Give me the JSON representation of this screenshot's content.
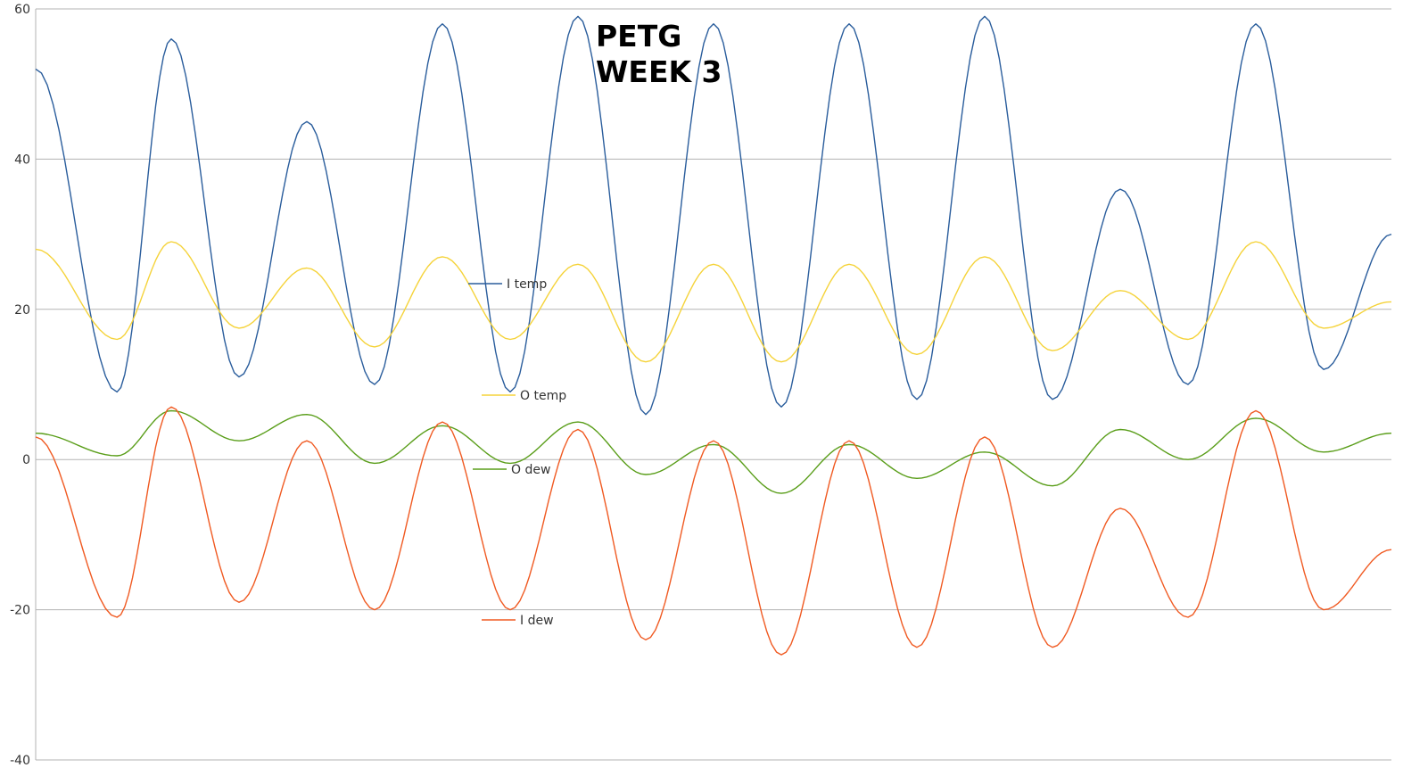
{
  "chart_data": {
    "type": "line",
    "title_lines": [
      "PETG",
      "WEEK 3"
    ],
    "xlabel": "",
    "ylabel": "",
    "ylim": [
      -40,
      60
    ],
    "yticks": [
      60,
      40,
      20,
      0,
      -20,
      -40
    ],
    "grid": true,
    "x": [
      0,
      0.6,
      1,
      1.5,
      2,
      2.5,
      3,
      3.5,
      4,
      4.5,
      5,
      5.5,
      6,
      6.5,
      7,
      7.5,
      8,
      8.5,
      9,
      9.5,
      10
    ],
    "series": [
      {
        "name": "I temp",
        "color": "#2a5d9c",
        "values": [
          52,
          9,
          56,
          11,
          45,
          10,
          58,
          9,
          59,
          6,
          58,
          7,
          58,
          8,
          59,
          8,
          36,
          10,
          58,
          12,
          30
        ]
      },
      {
        "name": "O temp",
        "color": "#f5d33a",
        "values": [
          28,
          16,
          29,
          17.5,
          25.5,
          15,
          27,
          16,
          26,
          13,
          26,
          13,
          26,
          14,
          27,
          14.5,
          22.5,
          16,
          29,
          17.5,
          21
        ]
      },
      {
        "name": "O dew",
        "color": "#5a9e1a",
        "values": [
          3.5,
          0.5,
          6.5,
          2.5,
          6,
          -0.5,
          4.5,
          -0.5,
          5,
          -2,
          2,
          -4.5,
          2,
          -2.5,
          1,
          -3.5,
          4,
          0,
          5.5,
          1,
          3.5
        ]
      },
      {
        "name": "I dew",
        "color": "#f05a22",
        "values": [
          3,
          -21,
          7,
          -19,
          2.5,
          -20,
          5,
          -20,
          4,
          -24,
          2.5,
          -26,
          2.5,
          -25,
          3,
          -25,
          -6.5,
          -21,
          6.5,
          -20,
          -12
        ]
      }
    ],
    "legend_placement": "inline"
  }
}
